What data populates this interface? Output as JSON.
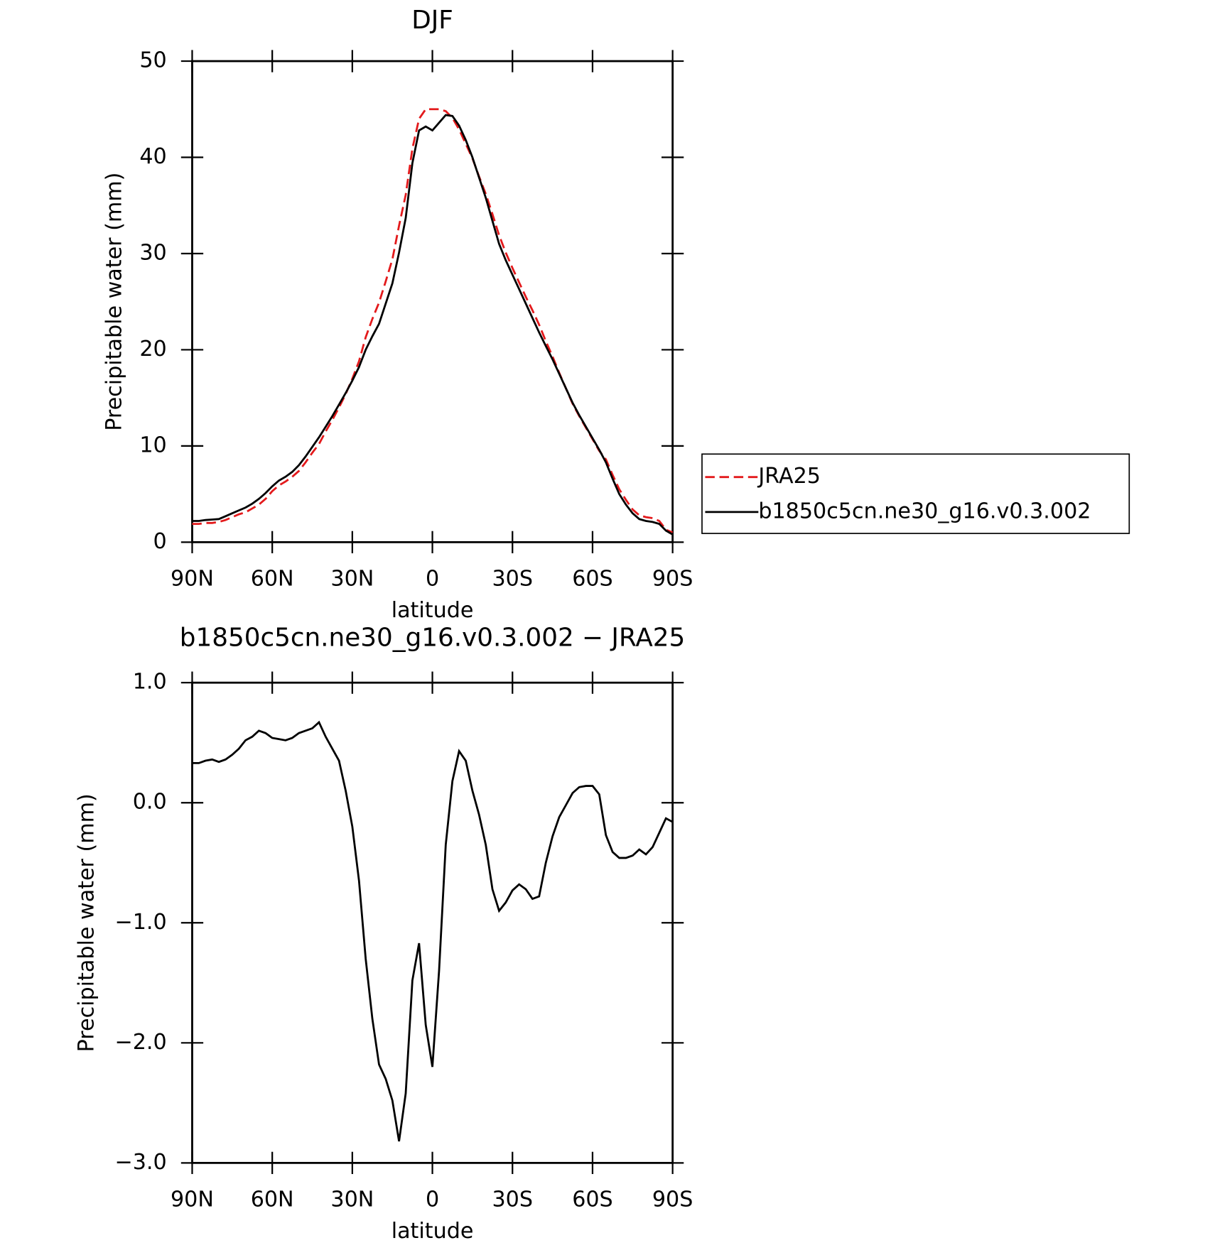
{
  "chart_data": [
    {
      "type": "line",
      "title": "DJF",
      "xlabel": "latitude",
      "ylabel": "Precipitable water (mm)",
      "x": [
        90,
        87.5,
        85,
        82.5,
        80,
        77.5,
        75,
        72.5,
        70,
        67.5,
        65,
        62.5,
        60,
        57.5,
        55,
        52.5,
        50,
        47.5,
        45,
        42.5,
        40,
        37.5,
        35,
        32.5,
        30,
        27.5,
        25,
        22.5,
        20,
        17.5,
        15,
        12.5,
        10,
        7.5,
        5,
        2.5,
        0,
        -2.5,
        -5,
        -7.5,
        -10,
        -12.5,
        -15,
        -17.5,
        -20,
        -22.5,
        -25,
        -27.5,
        -30,
        -32.5,
        -35,
        -37.5,
        -40,
        -42.5,
        -45,
        -47.5,
        -50,
        -52.5,
        -55,
        -57.5,
        -60,
        -62.5,
        -65,
        -67.5,
        -70,
        -72.5,
        -75,
        -77.5,
        -80,
        -82.5,
        -85,
        -87.5,
        -90
      ],
      "series": [
        {
          "name": "JRA25",
          "color": "#e31a1c",
          "linestyle": "dashed",
          "values": [
            1.9,
            1.9,
            2.0,
            2.0,
            2.1,
            2.3,
            2.6,
            2.9,
            3.1,
            3.5,
            3.9,
            4.5,
            5.3,
            5.9,
            6.3,
            6.8,
            7.4,
            8.3,
            9.3,
            10.2,
            11.5,
            12.7,
            14.0,
            15.4,
            17.0,
            18.8,
            21.3,
            23.2,
            24.9,
            27.1,
            29.4,
            32.9,
            36.1,
            40.9,
            44.0,
            45.0,
            45.0,
            45.0,
            44.8,
            44.1,
            42.9,
            41.4,
            39.9,
            38.0,
            36.2,
            34.1,
            31.9,
            30.1,
            28.5,
            27.0,
            25.5,
            24.1,
            22.6,
            20.9,
            19.3,
            17.6,
            16.0,
            14.4,
            13.1,
            11.9,
            10.7,
            9.5,
            8.6,
            7.0,
            5.5,
            4.4,
            3.4,
            2.8,
            2.6,
            2.5,
            2.2,
            1.3,
            1.0
          ]
        },
        {
          "name": "b1850c5cn.ne30_g16.v0.3.002",
          "color": "#000000",
          "linestyle": "solid",
          "values": [
            2.2,
            2.2,
            2.3,
            2.35,
            2.4,
            2.7,
            3.0,
            3.3,
            3.6,
            4.0,
            4.5,
            5.1,
            5.8,
            6.4,
            6.8,
            7.3,
            8.0,
            8.9,
            9.9,
            10.9,
            12.0,
            13.1,
            14.3,
            15.5,
            16.8,
            18.2,
            20.0,
            21.4,
            22.7,
            24.8,
            26.9,
            30.1,
            33.7,
            39.4,
            42.8,
            43.2,
            42.8,
            43.6,
            44.4,
            44.3,
            43.3,
            41.8,
            40.0,
            37.9,
            35.8,
            33.4,
            31.0,
            29.3,
            27.8,
            26.3,
            24.8,
            23.3,
            21.8,
            20.4,
            19.0,
            17.5,
            16.0,
            14.5,
            13.2,
            12.0,
            10.8,
            9.6,
            8.3,
            6.6,
            5.0,
            3.9,
            3.0,
            2.4,
            2.2,
            2.1,
            1.9,
            1.2,
            0.8
          ]
        }
      ],
      "xlim": [
        90,
        -90
      ],
      "xticks": [
        {
          "value": 90,
          "label": "90N"
        },
        {
          "value": 60,
          "label": "60N"
        },
        {
          "value": 30,
          "label": "30N"
        },
        0,
        {
          "value": -30,
          "label": "30S"
        },
        {
          "value": -60,
          "label": "60S"
        },
        {
          "value": -90,
          "label": "90S"
        }
      ],
      "ylim": [
        0,
        50
      ],
      "yticks": [
        0,
        10,
        20,
        30,
        40,
        50
      ],
      "legend": "right"
    },
    {
      "type": "line",
      "title": "b1850c5cn.ne30_g16.v0.3.002 − JRA25",
      "xlabel": "latitude",
      "ylabel": "Precipitable water (mm)",
      "x": [
        90,
        87.5,
        85,
        82.5,
        80,
        77.5,
        75,
        72.5,
        70,
        67.5,
        65,
        62.5,
        60,
        57.5,
        55,
        52.5,
        50,
        47.5,
        45,
        42.5,
        40,
        37.5,
        35,
        32.5,
        30,
        27.5,
        25,
        22.5,
        20,
        17.5,
        15,
        12.5,
        10,
        7.5,
        5,
        2.5,
        0,
        -2.5,
        -5,
        -7.5,
        -10,
        -12.5,
        -15,
        -17.5,
        -20,
        -22.5,
        -25,
        -27.5,
        -30,
        -32.5,
        -35,
        -37.5,
        -40,
        -42.5,
        -45,
        -47.5,
        -50,
        -52.5,
        -55,
        -57.5,
        -60,
        -62.5,
        -65,
        -67.5,
        -70,
        -72.5,
        -75,
        -77.5,
        -80,
        -82.5,
        -85,
        -87.5,
        -90
      ],
      "series": [
        {
          "color": "#000000",
          "linestyle": "solid",
          "values": [
            0.33,
            0.33,
            0.35,
            0.36,
            0.34,
            0.36,
            0.4,
            0.45,
            0.52,
            0.55,
            0.6,
            0.58,
            0.54,
            0.53,
            0.52,
            0.54,
            0.58,
            0.6,
            0.62,
            0.67,
            0.55,
            0.45,
            0.35,
            0.1,
            -0.2,
            -0.65,
            -1.3,
            -1.8,
            -2.18,
            -2.3,
            -2.48,
            -2.82,
            -2.42,
            -1.48,
            -1.17,
            -1.85,
            -2.2,
            -1.4,
            -0.35,
            0.18,
            0.43,
            0.35,
            0.1,
            -0.1,
            -0.35,
            -0.72,
            -0.9,
            -0.83,
            -0.73,
            -0.68,
            -0.72,
            -0.8,
            -0.78,
            -0.5,
            -0.28,
            -0.12,
            -0.02,
            0.08,
            0.13,
            0.14,
            0.14,
            0.07,
            -0.27,
            -0.41,
            -0.46,
            -0.46,
            -0.44,
            -0.39,
            -0.43,
            -0.37,
            -0.25,
            -0.13,
            -0.16
          ]
        }
      ],
      "xlim": [
        90,
        -90
      ],
      "xticks": [
        {
          "value": 90,
          "label": "90N"
        },
        {
          "value": 60,
          "label": "60N"
        },
        {
          "value": 30,
          "label": "30N"
        },
        0,
        {
          "value": -30,
          "label": "30S"
        },
        {
          "value": -60,
          "label": "60S"
        },
        {
          "value": -90,
          "label": "90S"
        }
      ],
      "ylim": [
        -3,
        1
      ],
      "yticks": [
        {
          "value": -3,
          "label": "−3.0"
        },
        {
          "value": -2,
          "label": "−2.0"
        },
        {
          "value": -1,
          "label": "−1.0"
        },
        {
          "value": 0,
          "label": "0.0"
        },
        {
          "value": 1,
          "label": "1.0"
        }
      ]
    }
  ]
}
